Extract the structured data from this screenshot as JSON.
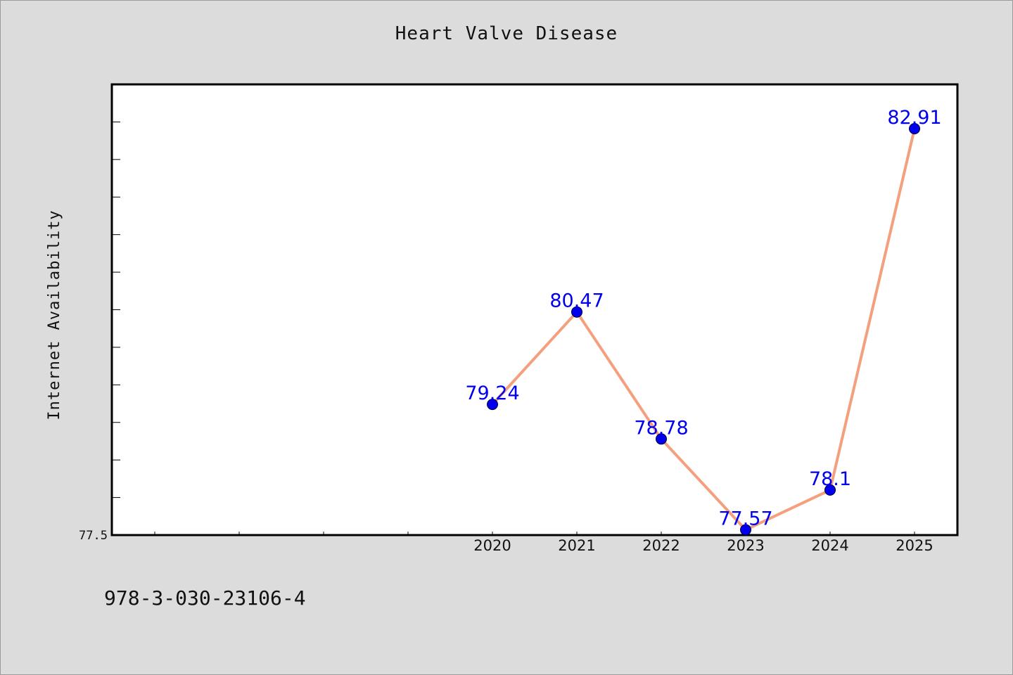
{
  "chart_data": {
    "type": "line",
    "title": "Heart Valve Disease",
    "xlabel": "",
    "ylabel": "Internet Availability",
    "x": [
      "2020",
      "2021",
      "2022",
      "2023",
      "2024",
      "2025"
    ],
    "series": [
      {
        "values": [
          79.24,
          80.47,
          78.78,
          77.57,
          78.1,
          82.91
        ]
      }
    ],
    "data_labels": [
      "79.24",
      "80.47",
      "78.78",
      "77.57",
      "78.1",
      "82.91"
    ],
    "y_tick_label": "77.5",
    "ylim": [
      77.5,
      83.5
    ],
    "grid": false,
    "legend": "none",
    "colors": {
      "line": "#f4a07e",
      "marker": "#0000ee",
      "label": "#0000ee",
      "background": "#dcdcdc",
      "plot_background": "#ffffff"
    }
  },
  "footer": {
    "isbn": "978-3-030-23106-4"
  }
}
